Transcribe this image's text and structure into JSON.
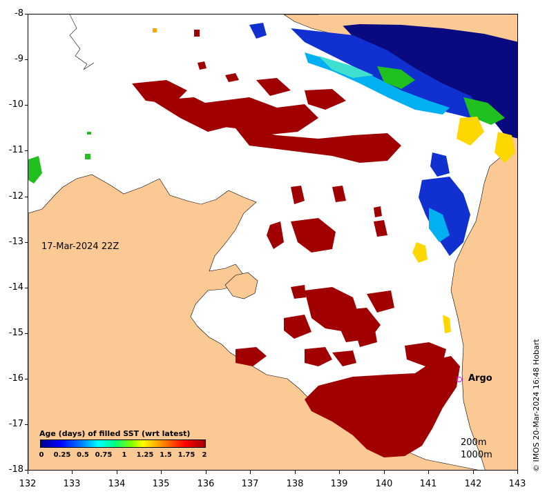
{
  "map": {
    "date_label": "17-Mar-2024 22Z",
    "credit": "© IMOS 20-Mar-2024 16:48 Hobart",
    "argo_label": "Argo",
    "depth_labels": [
      "200m",
      "1000m"
    ],
    "x_axis": {
      "ticks": [
        "132",
        "133",
        "134",
        "135",
        "136",
        "137",
        "138",
        "139",
        "140",
        "141",
        "142",
        "143"
      ],
      "range": [
        132,
        143
      ]
    },
    "y_axis": {
      "ticks": [
        "-8",
        "-9",
        "-10",
        "-11",
        "-12",
        "-13",
        "-14",
        "-15",
        "-16",
        "-17",
        "-18"
      ],
      "range": [
        -18,
        -8
      ]
    },
    "argo_float": {
      "lon": 141.65,
      "lat": -16.0
    }
  },
  "legend": {
    "title": "Age (days) of filled SST (wrt latest)",
    "ticks": [
      "0",
      "0.25",
      "0.5",
      "0.75",
      "1",
      "1.25",
      "1.5",
      "1.75",
      "2"
    ],
    "range": [
      0,
      2
    ]
  },
  "colors": {
    "land": "#fbc994",
    "sea": "#ffffff",
    "age_recent": "#00008b",
    "age_mid": "#00ff00",
    "age_old": "#a00000",
    "argo": "#ff00ff"
  }
}
